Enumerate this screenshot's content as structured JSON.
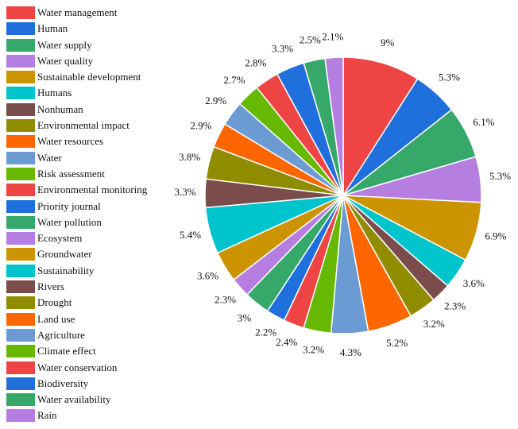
{
  "chart_data": {
    "type": "pie",
    "title": "",
    "legend_position": "left",
    "slices": [
      {
        "label": "Water management",
        "value": 9,
        "text": "9%",
        "color": "#ef4444"
      },
      {
        "label": "Human",
        "value": 5.3,
        "text": "5.3%",
        "color": "#1f6fdc"
      },
      {
        "label": "Water supply",
        "value": 6.1,
        "text": "6.1%",
        "color": "#36a86a"
      },
      {
        "label": "Water quality",
        "value": 5.3,
        "text": "5.3%",
        "color": "#b57ee0"
      },
      {
        "label": "Sustainable development",
        "value": 6.9,
        "text": "6.9%",
        "color": "#cc9400"
      },
      {
        "label": "Humans",
        "value": 3.6,
        "text": "3.6%",
        "color": "#00c4cc"
      },
      {
        "label": "Nonhuman",
        "value": 2.3,
        "text": "2.3%",
        "color": "#7a4c4c"
      },
      {
        "label": "Environmental impact",
        "value": 3.2,
        "text": "3.2%",
        "color": "#8f8c00"
      },
      {
        "label": "Water resources",
        "value": 5.2,
        "text": "5.2%",
        "color": "#ff6600"
      },
      {
        "label": "Water",
        "value": 4.3,
        "text": "4.3%",
        "color": "#6b9bd2"
      },
      {
        "label": "Risk assessment",
        "value": 3.2,
        "text": "3.2%",
        "color": "#66b800"
      },
      {
        "label": "Environmental monitoring",
        "value": 2.4,
        "text": "2.4%",
        "color": "#ef4444"
      },
      {
        "label": "Priority journal",
        "value": 2.2,
        "text": "2.2%",
        "color": "#1f6fdc"
      },
      {
        "label": "Water pollution",
        "value": 3,
        "text": "3%",
        "color": "#36a86a"
      },
      {
        "label": "Ecosystem",
        "value": 2.3,
        "text": "2.3%",
        "color": "#b57ee0"
      },
      {
        "label": "Groundwater",
        "value": 3.6,
        "text": "3.6%",
        "color": "#cc9400"
      },
      {
        "label": "Sustainability",
        "value": 5.4,
        "text": "5.4%",
        "color": "#00c4cc"
      },
      {
        "label": "Rivers",
        "value": 3.3,
        "text": "3.3%",
        "color": "#7a4c4c"
      },
      {
        "label": "Drought",
        "value": 3.8,
        "text": "3.8%",
        "color": "#8f8c00"
      },
      {
        "label": "Land use",
        "value": 2.9,
        "text": "2.9%",
        "color": "#ff6600"
      },
      {
        "label": "Agriculture",
        "value": 2.9,
        "text": "2.9%",
        "color": "#6b9bd2"
      },
      {
        "label": "Climate effect",
        "value": 2.7,
        "text": "2.7%",
        "color": "#66b800"
      },
      {
        "label": "Water conservation",
        "value": 2.8,
        "text": "2.8%",
        "color": "#ef4444"
      },
      {
        "label": "Biodiversity",
        "value": 3.3,
        "text": "3.3%",
        "color": "#1f6fdc"
      },
      {
        "label": "Water availability",
        "value": 2.5,
        "text": "2.5%",
        "color": "#36a86a"
      },
      {
        "label": "Rain",
        "value": 2.1,
        "text": "2.1%",
        "color": "#b57ee0"
      }
    ]
  }
}
